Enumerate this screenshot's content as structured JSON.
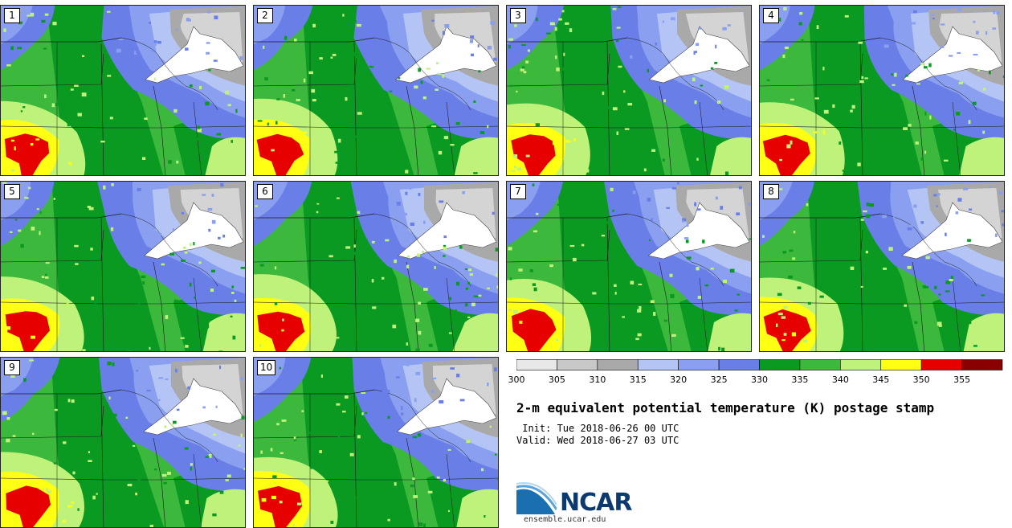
{
  "title": "2-m equivalent potential temperature (K) postage stamp",
  "init_line": " Init: Tue 2018-06-26 00 UTC",
  "valid_line": "Valid: Wed 2018-06-27 03 UTC",
  "logo_text": "NCAR",
  "site": "ensemble.ucar.edu",
  "members": [
    "1",
    "2",
    "3",
    "4",
    "5",
    "6",
    "7",
    "8",
    "9",
    "10"
  ],
  "colorbar": {
    "ticks": [
      "300",
      "305",
      "310",
      "315",
      "320",
      "325",
      "330",
      "335",
      "340",
      "345",
      "350",
      "355"
    ],
    "colors": [
      "#e8e8e8",
      "#c8c8c8",
      "#a9a9a9",
      "#b4c4f4",
      "#8a9ff0",
      "#6a7ee8",
      "#0a9a22",
      "#3cb83c",
      "#bff27a",
      "#ffff14",
      "#e60000",
      "#8a0000"
    ]
  },
  "map_colors": {
    "white": "#ffffff",
    "light_gray": "#d4d4d4",
    "gray": "#a9a9a9",
    "pale_blue": "#b4c4f4",
    "blue": "#8a9ff0",
    "dark_blue": "#6a7ee8",
    "dark_green": "#0a9a22",
    "green": "#3cb83c",
    "light_green": "#bff27a",
    "yellow": "#ffff14",
    "red": "#e60000"
  }
}
